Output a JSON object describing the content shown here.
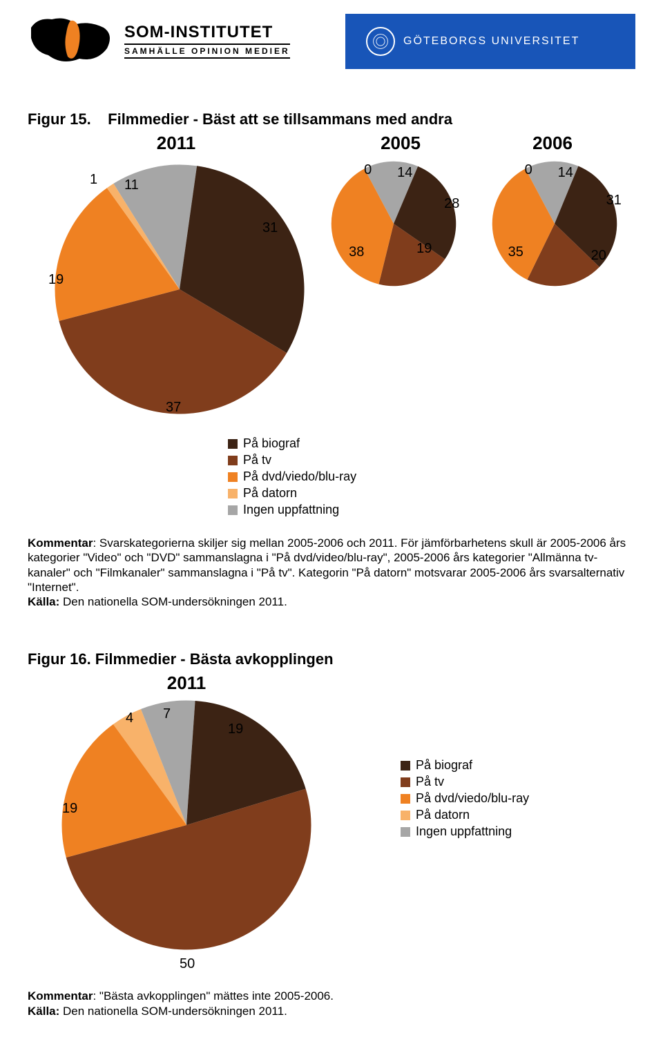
{
  "header": {
    "som_title": "SOM-INSTITUTET",
    "som_sub": "SAMHÄLLE  OPINION  MEDIER",
    "gu_text": "GÖTEBORGS UNIVERSITET",
    "gu_bg": "#1855b8"
  },
  "colors": {
    "dark_brown": "#3c2314",
    "brown": "#803d1c",
    "orange": "#ef8122",
    "light_orange": "#f8b26a",
    "gray": "#a6a6a6"
  },
  "legend": [
    {
      "label": "På biograf",
      "color": "#3c2314"
    },
    {
      "label": "På tv",
      "color": "#803d1c"
    },
    {
      "label": "På dvd/viedo/blu-ray",
      "color": "#ef8122"
    },
    {
      "label": "På datorn",
      "color": "#f8b26a"
    },
    {
      "label": "Ingen uppfattning",
      "color": "#a6a6a6"
    }
  ],
  "figur15": {
    "number": "Figur 15.",
    "title": "Filmmedier - Bäst att se tillsammans med andra",
    "year_2011": "2011",
    "year_2005": "2005",
    "year_2006": "2006",
    "pie_2011": {
      "values": [
        31,
        37,
        19,
        1,
        11
      ],
      "label_37": "37"
    },
    "pie_2005": {
      "values": [
        28,
        19,
        38,
        0,
        14
      ]
    },
    "pie_2006": {
      "values": [
        31,
        20,
        35,
        0,
        14
      ]
    },
    "labels_2011": {
      "v1": "1",
      "v11": "11",
      "v31": "31",
      "v19": "19",
      "v37": "37"
    },
    "labels_2005": {
      "v0": "0",
      "v14": "14",
      "v28": "28",
      "v19": "19",
      "v38": "38"
    },
    "labels_2006": {
      "v0": "0",
      "v14": "14",
      "v31": "31",
      "v20": "20",
      "v35": "35"
    },
    "kommentar_label": "Kommentar",
    "kommentar_body": ": Svarskategorierna skiljer sig mellan 2005-2006 och 2011. För jämförbarhetens skull är 2005-2006 års kategorier \"Video\" och \"DVD\" sammanslagna i \"På dvd/video/blu-ray\", 2005-2006 års kategorier \"Allmänna tv-kanaler\" och \"Filmkanaler\" sammanslagna i \"På tv\". Kategorin \"På datorn\" motsvarar 2005-2006 års svarsalternativ \"Internet\".",
    "kalla_label": "Källa:",
    "kalla_body": " Den nationella SOM-undersökningen 2011."
  },
  "figur16": {
    "number": "Figur 16.",
    "title": " Filmmedier - Bästa avkopplingen",
    "year": "2011",
    "pie": {
      "values": [
        19,
        50,
        19,
        4,
        7
      ]
    },
    "labels": {
      "v4": "4",
      "v7": "7",
      "v19a": "19",
      "v19b": "19",
      "v50": "50"
    },
    "kommentar_label": "Kommentar",
    "kommentar_body": ": \"Bästa avkopplingen\" mättes inte 2005-2006.",
    "kalla_label": "Källa:",
    "kalla_body": " Den nationella SOM-undersökningen 2011."
  }
}
